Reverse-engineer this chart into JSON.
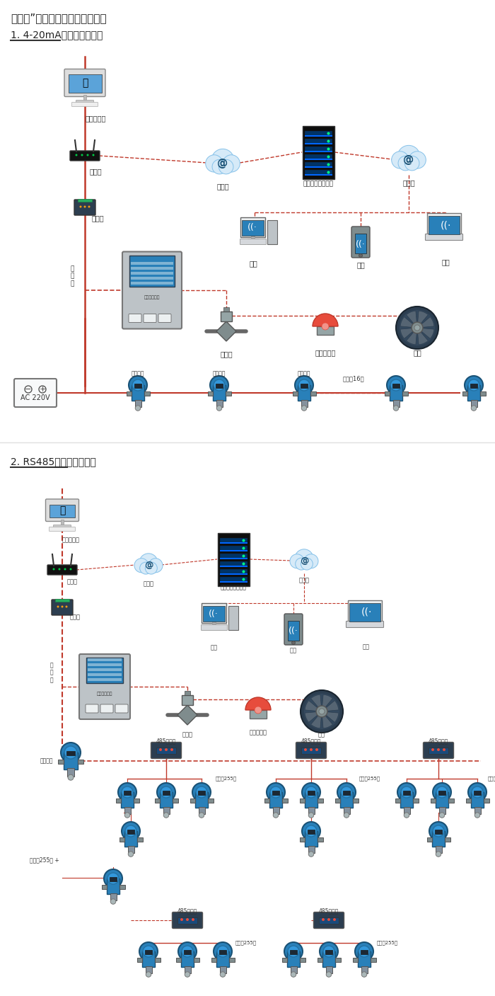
{
  "title1": "机气猫”系列带显示固定式检测件",
  "section1": "1. 4-20mA信号连接系统图",
  "section2": "2. RS485信号连接系统图",
  "bg_color": "#ffffff",
  "red": "#c0392b",
  "red_dash": "#c0392b",
  "dark": "#222222",
  "blue_device": "#2980b9",
  "fig_width": 7.0,
  "fig_height": 14.07,
  "dpi": 100
}
